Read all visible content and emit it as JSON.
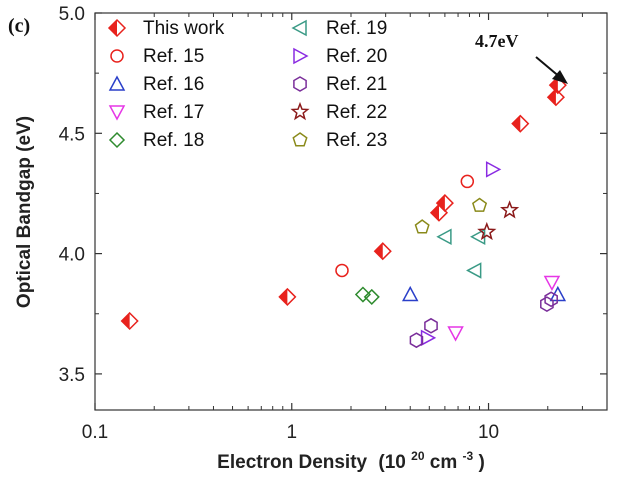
{
  "chart_data": {
    "type": "scatter",
    "panel_label": "(c)",
    "xlabel": "Electron Density",
    "xlabel_unit_base": "(10",
    "xlabel_unit_exp": "20",
    "xlabel_unit_mid": " cm",
    "xlabel_unit_exp2": "-3",
    "xlabel_unit_end": ")",
    "ylabel": "Optical Bandgap (eV)",
    "xscale": "log",
    "xlim": [
      0.1,
      40
    ],
    "ylim": [
      3.35,
      5.0
    ],
    "xticks": [
      {
        "value": 0.1,
        "label": "0.1"
      },
      {
        "value": 1,
        "label": "1"
      },
      {
        "value": 10,
        "label": "10"
      }
    ],
    "yticks": [
      {
        "value": 3.5,
        "label": "3.5"
      },
      {
        "value": 4.0,
        "label": "4.0"
      },
      {
        "value": 4.5,
        "label": "4.5"
      },
      {
        "value": 5.0,
        "label": "5.0"
      }
    ],
    "grid": false,
    "legend_position": "top-left",
    "annotation": {
      "text": "4.7eV",
      "x": 22.5,
      "y": 4.7
    },
    "series": [
      {
        "name": "This work",
        "marker": "half-diamond",
        "color": "#e8221d",
        "points": [
          [
            0.15,
            3.72
          ],
          [
            0.95,
            3.82
          ],
          [
            2.9,
            4.01
          ],
          [
            5.6,
            4.17
          ],
          [
            6.0,
            4.21
          ],
          [
            14.5,
            4.54
          ],
          [
            22.0,
            4.65
          ],
          [
            22.5,
            4.7
          ]
        ]
      },
      {
        "name": "Ref. 15",
        "marker": "circle",
        "color": "#e8221d",
        "points": [
          [
            1.8,
            3.93
          ],
          [
            7.8,
            4.3
          ]
        ]
      },
      {
        "name": "Ref. 16",
        "marker": "triangle-up",
        "color": "#2a3fc9",
        "points": [
          [
            4.0,
            3.83
          ],
          [
            22.5,
            3.83
          ]
        ]
      },
      {
        "name": "Ref. 17",
        "marker": "triangle-down",
        "color": "#e636e6",
        "points": [
          [
            6.8,
            3.67
          ],
          [
            21.0,
            3.88
          ]
        ]
      },
      {
        "name": "Ref. 18",
        "marker": "diamond",
        "color": "#2e8b2e",
        "points": [
          [
            2.3,
            3.83
          ],
          [
            2.55,
            3.82
          ]
        ]
      },
      {
        "name": "Ref. 19",
        "marker": "triangle-left",
        "color": "#3a9a86",
        "points": [
          [
            6.0,
            4.07
          ],
          [
            8.5,
            3.93
          ],
          [
            8.9,
            4.07
          ]
        ]
      },
      {
        "name": "Ref. 20",
        "marker": "triangle-right",
        "color": "#8a2be2",
        "points": [
          [
            4.9,
            3.65
          ],
          [
            10.5,
            4.35
          ]
        ]
      },
      {
        "name": "Ref. 21",
        "marker": "hexagon",
        "color": "#7a2e9a",
        "points": [
          [
            4.3,
            3.64
          ],
          [
            5.1,
            3.7
          ],
          [
            19.8,
            3.79
          ],
          [
            20.8,
            3.81
          ]
        ]
      },
      {
        "name": "Ref. 22",
        "marker": "star",
        "color": "#8b1a1a",
        "points": [
          [
            9.8,
            4.09
          ],
          [
            12.8,
            4.18
          ]
        ]
      },
      {
        "name": "Ref. 23",
        "marker": "pentagon",
        "color": "#8a8a1a",
        "points": [
          [
            4.6,
            4.11
          ],
          [
            9.0,
            4.2
          ]
        ]
      }
    ]
  }
}
